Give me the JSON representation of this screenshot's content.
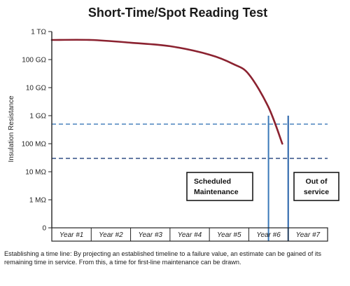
{
  "chart_data": {
    "type": "line",
    "title": "Short-Time/Spot Reading Test",
    "ylabel": "Insulation Resistance",
    "xlabel": "",
    "y_scale": "log",
    "y_ticks": [
      "1 TΩ",
      "100 GΩ",
      "10 GΩ",
      "1 GΩ",
      "100 MΩ",
      "10 MΩ",
      "1 MΩ",
      "0"
    ],
    "categories": [
      "Year #1",
      "Year #2",
      "Year #3",
      "Year #4",
      "Year #5",
      "Year #6",
      "Year #7"
    ],
    "series": [
      {
        "color": "#8b2230",
        "points": [
          {
            "x": 0.0,
            "y": 500000000000
          },
          {
            "x": 1.0,
            "y": 500000000000
          },
          {
            "x": 2.0,
            "y": 400000000000
          },
          {
            "x": 3.0,
            "y": 300000000000
          },
          {
            "x": 4.0,
            "y": 150000000000
          },
          {
            "x": 4.6,
            "y": 70000000000
          },
          {
            "x": 5.0,
            "y": 30000000000
          },
          {
            "x": 5.5,
            "y": 2000000000
          },
          {
            "x": 5.85,
            "y": 100000000
          }
        ]
      }
    ],
    "reference_lines": [
      {
        "axis": "y",
        "y": 500000000,
        "style": "dashed",
        "color": "#3a78b8"
      },
      {
        "axis": "y",
        "y": 30000000,
        "style": "dashed",
        "color": "#1f3f7a"
      },
      {
        "axis": "x",
        "x": 5.5,
        "color": "#3a78b8"
      },
      {
        "axis": "x",
        "x": 6.0,
        "color": "#2560a8"
      }
    ],
    "annotations": [
      {
        "lines": [
          "Scheduled",
          "Maintenance"
        ]
      },
      {
        "lines": [
          "Out of",
          "service"
        ]
      }
    ],
    "grid": false
  },
  "caption": "Establishing a time line: By projecting an established timeline to a failure value, an estimate can be gained of its remaining time in service. From this, a time for first-line maintenance can be drawn."
}
